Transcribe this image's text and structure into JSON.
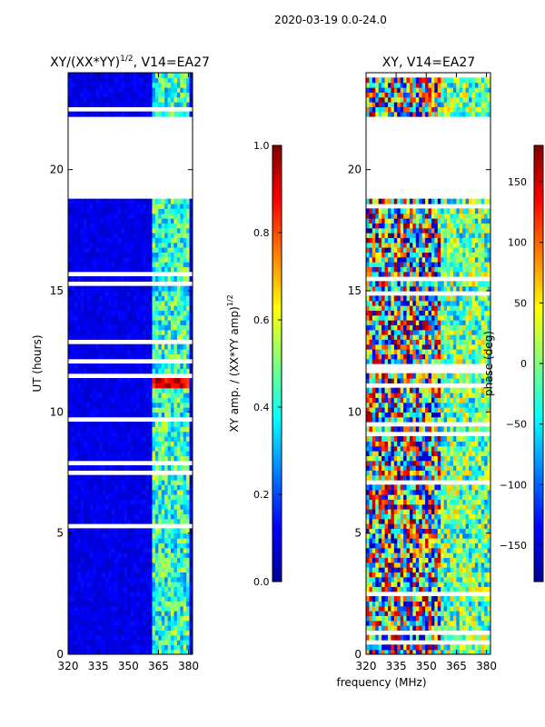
{
  "suptitle": "2020-03-19 0.0-24.0",
  "colors": {
    "jet": [
      "#00008f",
      "#0000ff",
      "#007fff",
      "#00ffff",
      "#7fff7f",
      "#ffff00",
      "#ff7f00",
      "#ff0000",
      "#7f0000"
    ],
    "axis": "#000000",
    "gap": "#ffffff"
  },
  "chart_data": [
    {
      "type": "heatmap",
      "title_prefix": "XY/(XX*YY)",
      "title_exp": "1/2",
      "title_suffix": ", V14=EA27",
      "xlabel": "",
      "ylabel": "UT (hours)",
      "xlim": [
        320,
        382
      ],
      "ylim": [
        0,
        24
      ],
      "xticks": [
        320,
        335,
        350,
        365,
        380
      ],
      "yticks": [
        0,
        5,
        10,
        15,
        20
      ],
      "data_gaps_hours": [
        [
          18.9,
          22.2
        ]
      ],
      "colorbar": {
        "label_prefix": "XY amp. / (XX*YY amp)",
        "label_exp": "1/2",
        "range": [
          0.0,
          1.0
        ],
        "ticks": [
          "0.0",
          "0.2",
          "0.4",
          "0.6",
          "0.8",
          "1.0"
        ]
      }
    },
    {
      "type": "heatmap",
      "title": "XY, V14=EA27",
      "xlabel": "frequency (MHz)",
      "ylabel": "",
      "xlim": [
        320,
        382
      ],
      "ylim": [
        0,
        24
      ],
      "xticks": [
        320,
        335,
        350,
        365,
        380
      ],
      "yticks": [
        0,
        5,
        10,
        15,
        20
      ],
      "data_gaps_hours": [
        [
          18.9,
          22.2
        ]
      ],
      "colorbar": {
        "label": "phase (deg)",
        "range": [
          -180,
          180
        ],
        "ticks": [
          "150",
          "100",
          "50",
          "0",
          "−50",
          "−100",
          "−150"
        ]
      }
    }
  ]
}
